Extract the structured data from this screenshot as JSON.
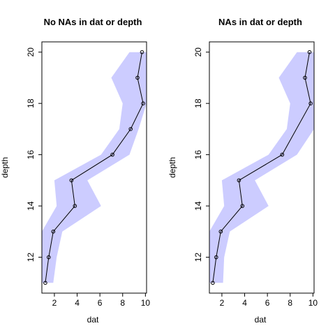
{
  "chart_data": [
    {
      "type": "line",
      "title": "No NAs in dat or depth",
      "xlabel": "dat",
      "ylabel": "depth",
      "xlim": [
        0.9,
        10.1
      ],
      "ylim": [
        10.6,
        20.4
      ],
      "x_ticks": [
        2,
        4,
        6,
        8,
        10
      ],
      "y_ticks": [
        12,
        14,
        16,
        18,
        20
      ],
      "grid": false,
      "band_color": "#ccccff",
      "line_color": "#000000",
      "series": [
        {
          "values": [
            {
              "x": 1.2,
              "y": 11
            },
            {
              "x": 1.5,
              "y": 12
            },
            {
              "x": 1.9,
              "y": 13
            },
            {
              "x": 3.8,
              "y": 14
            },
            {
              "x": 3.5,
              "y": 15
            },
            {
              "x": 7.1,
              "y": 16
            },
            {
              "x": 8.7,
              "y": 17
            },
            {
              "x": 9.8,
              "y": 18
            },
            {
              "x": 9.3,
              "y": 19
            },
            {
              "x": 9.7,
              "y": 20
            }
          ]
        }
      ],
      "band": [
        {
          "y": 11,
          "lower": 0.9,
          "upper": 1.9
        },
        {
          "y": 12,
          "lower": 0.9,
          "upper": 2.2
        },
        {
          "y": 13,
          "lower": 0.9,
          "upper": 2.7
        },
        {
          "y": 14,
          "lower": 2.2,
          "upper": 6.1
        },
        {
          "y": 15,
          "lower": 2.0,
          "upper": 4.9
        },
        {
          "y": 16,
          "lower": 6.1,
          "upper": 8.6
        },
        {
          "y": 17,
          "lower": 7.7,
          "upper": 9.4
        },
        {
          "y": 18,
          "lower": 8.0,
          "upper": 10.1
        },
        {
          "y": 19,
          "lower": 7.0,
          "upper": 10.1
        },
        {
          "y": 20,
          "lower": 8.6,
          "upper": 10.1
        }
      ]
    },
    {
      "type": "line",
      "title": "NAs in dat or depth",
      "xlabel": "dat",
      "ylabel": "depth",
      "xlim": [
        0.9,
        10.1
      ],
      "ylim": [
        10.6,
        20.4
      ],
      "x_ticks": [
        2,
        4,
        6,
        8,
        10
      ],
      "y_ticks": [
        12,
        14,
        16,
        18,
        20
      ],
      "grid": false,
      "band_color": "#ccccff",
      "line_color": "#000000",
      "series": [
        {
          "values": [
            {
              "x": 1.2,
              "y": 11
            },
            {
              "x": 1.5,
              "y": 12
            },
            {
              "x": 1.9,
              "y": 13
            },
            {
              "x": 3.8,
              "y": 14
            },
            {
              "x": 3.5,
              "y": 15
            },
            {
              "x": 7.3,
              "y": 16
            },
            {
              "x": 9.8,
              "y": 18
            },
            {
              "x": 9.3,
              "y": 19
            },
            {
              "x": 9.7,
              "y": 20
            }
          ]
        }
      ],
      "band": [
        {
          "y": 11,
          "lower": 0.9,
          "upper": 2.1
        },
        {
          "y": 12,
          "lower": 0.9,
          "upper": 2.2
        },
        {
          "y": 13,
          "lower": 0.9,
          "upper": 2.7
        },
        {
          "y": 14,
          "lower": 2.2,
          "upper": 6.1
        },
        {
          "y": 15,
          "lower": 2.0,
          "upper": 4.9
        },
        {
          "y": 16,
          "lower": 6.1,
          "upper": 8.6
        },
        {
          "y": 17,
          "lower": 7.7,
          "upper": 10.1
        },
        {
          "y": 18,
          "lower": 8.0,
          "upper": 10.1
        },
        {
          "y": 19,
          "lower": 7.0,
          "upper": 10.1
        },
        {
          "y": 20,
          "lower": 8.6,
          "upper": 10.1
        }
      ]
    }
  ]
}
